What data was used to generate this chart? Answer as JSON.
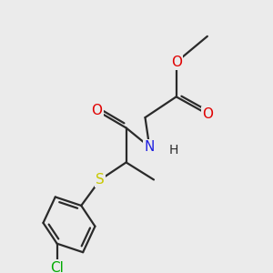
{
  "background_color": "#ebebeb",
  "bond_color": "#2a2a2a",
  "atom_colors": {
    "O": "#e00000",
    "N": "#2020e0",
    "S": "#c8c800",
    "Cl": "#00aa00",
    "C": "#2a2a2a",
    "H": "#2a2a2a"
  },
  "lw": 1.6,
  "fontsize": 11
}
